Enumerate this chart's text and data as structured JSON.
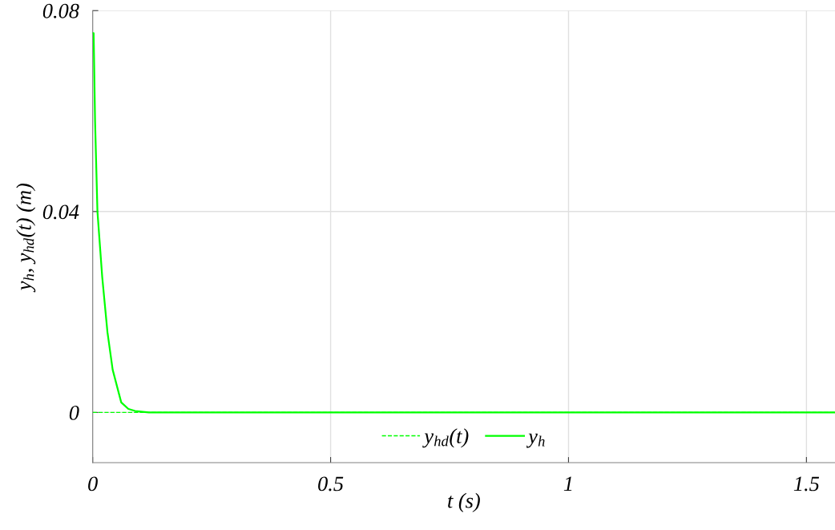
{
  "chart_data": {
    "type": "line",
    "xlabel": "t (s)",
    "ylabel": "y$_{h}$, y$_{hd}$(t) (m)",
    "xlim": [
      0,
      1.56
    ],
    "ylim": [
      -0.01,
      0.08
    ],
    "xticks": [
      0,
      0.5,
      1,
      1.5
    ],
    "yticks": [
      0,
      0.04,
      0.08
    ],
    "grid": true,
    "legend": "bottom",
    "series": [
      {
        "name": "y$_{hd}$(t)",
        "color": "#00ff00",
        "line_style": "dashed",
        "x": [
          0,
          1.56
        ],
        "values": [
          0,
          0
        ]
      },
      {
        "name": "y$_{h}$",
        "color": "#00ff00",
        "line_style": "solid",
        "x": [
          0,
          0.002,
          0.005,
          0.01,
          0.02,
          0.031,
          0.042,
          0.06,
          0.075,
          0.089,
          0.118,
          1.56
        ],
        "values": [
          0.0755,
          0.0755,
          0.058,
          0.04,
          0.027,
          0.016,
          0.0085,
          0.002,
          0.0007,
          0.0003,
          0,
          0
        ]
      }
    ]
  }
}
